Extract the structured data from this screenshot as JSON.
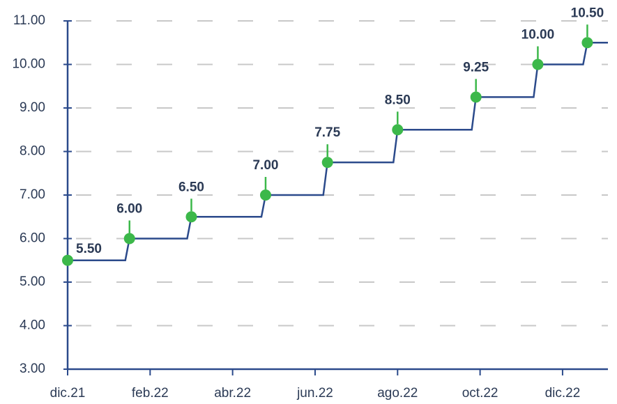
{
  "chart_data": {
    "type": "step",
    "x": [
      0,
      1.5,
      3.0,
      4.8,
      6.3,
      8.0,
      9.9,
      11.4,
      12.6
    ],
    "series": [
      {
        "color": "#2b4a8b",
        "marker_color": "#3cb84a",
        "values": [
          5.5,
          6.0,
          6.5,
          7.0,
          7.75,
          8.5,
          9.25,
          10.0,
          10.5
        ],
        "value_labels": [
          "5.50",
          "6.00",
          "6.50",
          "7.00",
          "7.75",
          "8.50",
          "9.25",
          "10.00",
          "10.50"
        ]
      }
    ],
    "xlim": [
      0,
      13.1
    ],
    "xticks": [
      {
        "value": 0,
        "label": "dic.21"
      },
      {
        "value": 2,
        "label": "feb.22"
      },
      {
        "value": 4,
        "label": "abr.22"
      },
      {
        "value": 6,
        "label": "jun.22"
      },
      {
        "value": 8,
        "label": "ago.22"
      },
      {
        "value": 10,
        "label": "oct.22"
      },
      {
        "value": 12,
        "label": "dic.22"
      }
    ],
    "ylim": [
      3,
      11
    ],
    "yticks": [
      {
        "value": 3,
        "label": "3.00"
      },
      {
        "value": 4,
        "label": "4.00"
      },
      {
        "value": 5,
        "label": "5.00"
      },
      {
        "value": 6,
        "label": "6.00"
      },
      {
        "value": 7,
        "label": "7.00"
      },
      {
        "value": 8,
        "label": "8.00"
      },
      {
        "value": 9,
        "label": "9.00"
      },
      {
        "value": 10,
        "label": "10.00"
      },
      {
        "value": 11,
        "label": "11.00"
      }
    ],
    "grid": true
  }
}
